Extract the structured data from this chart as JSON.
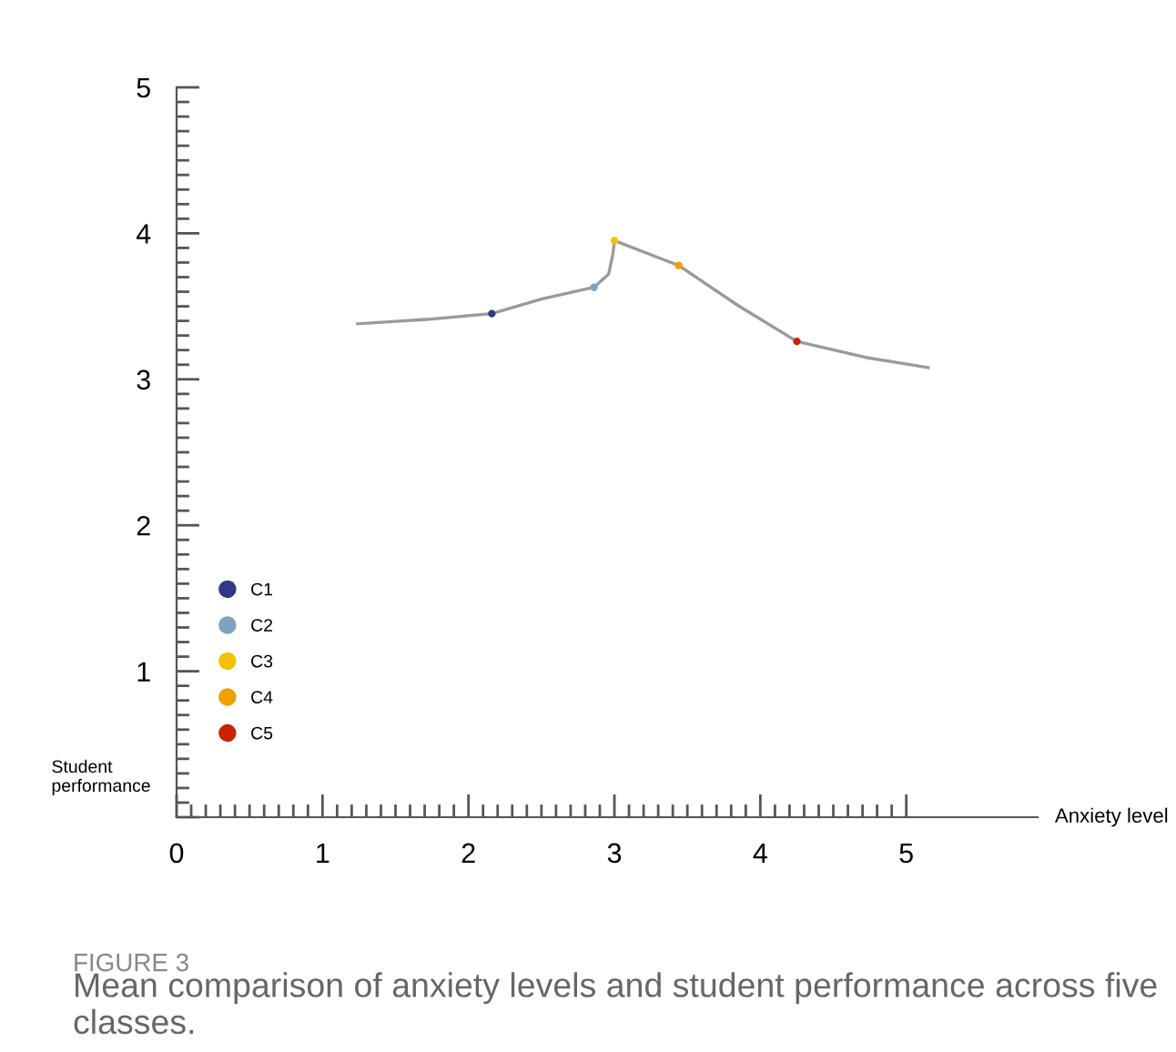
{
  "chart_data": {
    "type": "scatter",
    "title": "FIGURE 3",
    "subtitle": "Mean comparison of anxiety levels and student performance across five classes.",
    "xlabel": "Anxiety level",
    "ylabel": "Student performance",
    "series": [
      {
        "type": "line",
        "color": "#9a9a9a",
        "x": [
          1.24,
          1.71,
          2.16,
          2.5,
          2.86,
          2.96,
          2.99,
          3.0,
          3.44,
          3.84,
          4.25,
          4.72,
          5.15
        ],
        "values": [
          3.38,
          3.41,
          3.45,
          3.55,
          3.63,
          3.72,
          3.86,
          3.95,
          3.78,
          3.51,
          3.26,
          3.15,
          3.08
        ]
      },
      {
        "name": "C1",
        "color": "#2e3a87",
        "marker": "circle",
        "x": [
          2.16
        ],
        "values": [
          3.45
        ]
      },
      {
        "name": "C2",
        "color": "#7fa3bf",
        "marker": "circle",
        "x": [
          2.86
        ],
        "values": [
          3.63
        ]
      },
      {
        "name": "C3",
        "color": "#f2c200",
        "marker": "circle",
        "x": [
          3.0
        ],
        "values": [
          3.95
        ]
      },
      {
        "name": "C4",
        "color": "#f0a000",
        "marker": "circle",
        "x": [
          3.44
        ],
        "values": [
          3.78
        ]
      },
      {
        "name": "C5",
        "color": "#cc2200",
        "marker": "circle",
        "x": [
          4.25
        ],
        "values": [
          3.26
        ]
      }
    ],
    "xlim": [
      0,
      5.9
    ],
    "ylim": [
      0,
      5
    ],
    "xticks": [
      0,
      1,
      2,
      3,
      4,
      5
    ],
    "yticks": [
      {
        "value": 0,
        "label": null
      },
      1,
      2,
      3,
      4,
      5
    ],
    "legend": "bottom left",
    "grid": false
  }
}
